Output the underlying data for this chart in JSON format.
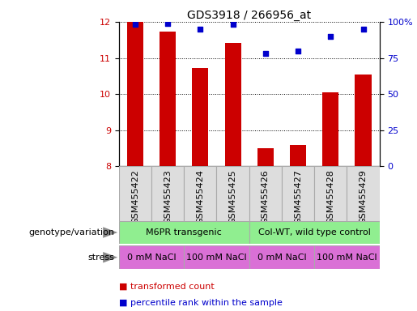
{
  "title": "GDS3918 / 266956_at",
  "samples": [
    "GSM455422",
    "GSM455423",
    "GSM455424",
    "GSM455425",
    "GSM455426",
    "GSM455427",
    "GSM455428",
    "GSM455429"
  ],
  "red_values": [
    12.0,
    11.72,
    10.72,
    11.42,
    8.5,
    8.6,
    10.05,
    10.55
  ],
  "blue_values": [
    98,
    99,
    95,
    98,
    78,
    80,
    90,
    95
  ],
  "ylim_left": [
    8,
    12
  ],
  "ylim_right": [
    0,
    100
  ],
  "yticks_left": [
    8,
    9,
    10,
    11,
    12
  ],
  "yticks_right": [
    0,
    25,
    50,
    75,
    100
  ],
  "bar_color": "#cc0000",
  "square_color": "#0000cc",
  "genotype_groups": [
    {
      "label": "M6PR transgenic",
      "start": 0,
      "end": 4,
      "color": "#90ee90"
    },
    {
      "label": "Col-WT, wild type control",
      "start": 4,
      "end": 8,
      "color": "#90ee90"
    }
  ],
  "stress_groups": [
    {
      "label": "0 mM NaCl",
      "start": 0,
      "end": 2,
      "color": "#da70d6"
    },
    {
      "label": "100 mM NaCl",
      "start": 2,
      "end": 4,
      "color": "#da70d6"
    },
    {
      "label": "0 mM NaCl",
      "start": 4,
      "end": 6,
      "color": "#da70d6"
    },
    {
      "label": "100 mM NaCl",
      "start": 6,
      "end": 8,
      "color": "#da70d6"
    }
  ],
  "legend_items": [
    {
      "label": "transformed count",
      "color": "#cc0000"
    },
    {
      "label": "percentile rank within the sample",
      "color": "#0000cc"
    }
  ],
  "genotype_label": "genotype/variation",
  "stress_label": "stress",
  "title_fontsize": 10,
  "tick_fontsize": 8,
  "label_fontsize": 8,
  "sample_label_color": "#dddddd",
  "sample_border_color": "#aaaaaa"
}
